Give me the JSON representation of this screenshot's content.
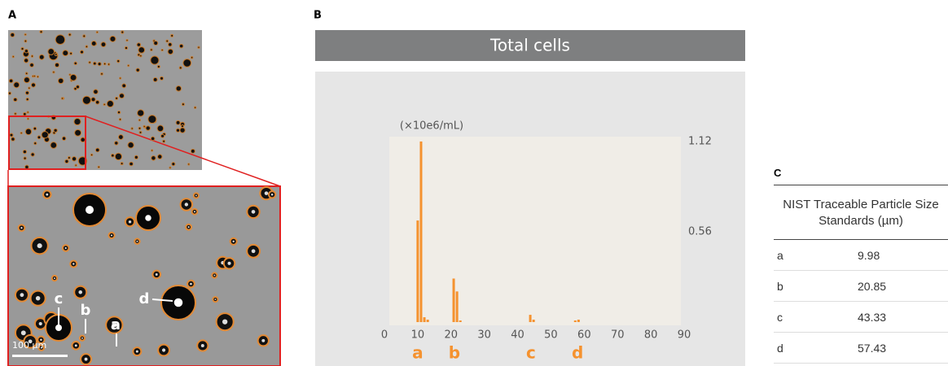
{
  "panel_a": {
    "label": "A",
    "scale_bar": "100 µm",
    "markers": [
      "c",
      "b",
      "a",
      "d"
    ]
  },
  "chart_data": {
    "type": "bar",
    "panel_label": "B",
    "title": "Total cells",
    "y_label": "(×10e6/mL)",
    "x": [
      10,
      11,
      12,
      13,
      20.8,
      21.8,
      22.8,
      43.8,
      44.8,
      57.3,
      58.3
    ],
    "values": [
      0.63,
      1.12,
      0.03,
      0.015,
      0.27,
      0.19,
      0.01,
      0.045,
      0.015,
      0.01,
      0.015
    ],
    "color": "#f5922f",
    "xlim": [
      0,
      90
    ],
    "xticks": [
      0,
      10,
      20,
      30,
      40,
      50,
      60,
      70,
      80,
      90
    ],
    "ylim": [
      0,
      1.15
    ],
    "yticks": [
      0.56,
      1.12
    ],
    "annotations": [
      {
        "text": "a",
        "x": 10
      },
      {
        "text": "b",
        "x": 21
      },
      {
        "text": "c",
        "x": 44
      },
      {
        "text": "d",
        "x": 58
      }
    ]
  },
  "table": {
    "label": "C",
    "header": "NIST Traceable Particle Size Standards (µm)",
    "rows": [
      [
        "a",
        "9.98"
      ],
      [
        "b",
        "20.85"
      ],
      [
        "c",
        "43.33"
      ],
      [
        "d",
        "57.43"
      ]
    ]
  }
}
